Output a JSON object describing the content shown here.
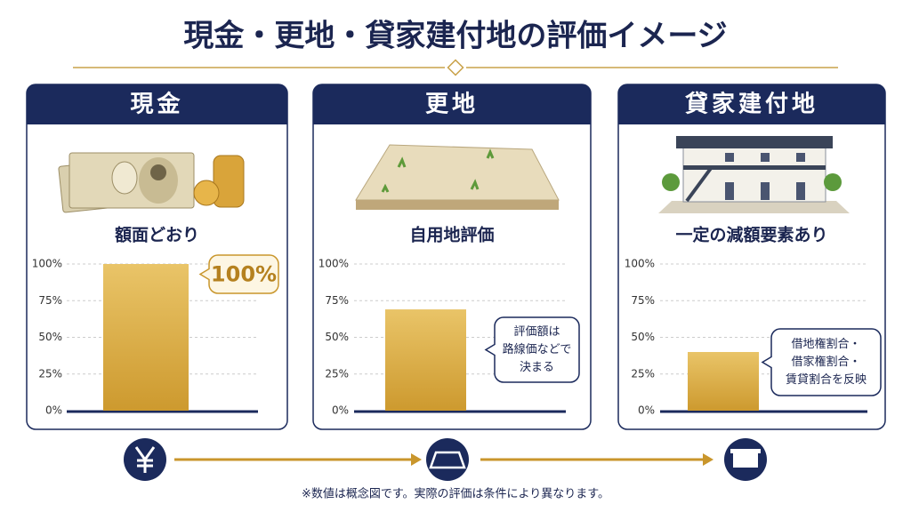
{
  "title": "現金・更地・貸家建付地の評価イメージ",
  "footnote": "※数値は概念図です。実際の評価は条件により異なります。",
  "chart_data": [
    {
      "type": "bar",
      "title": "現金",
      "subtitle": "額面どおり",
      "categories": [
        null
      ],
      "values": [
        100
      ],
      "value_labels": [
        "100%"
      ],
      "color": "#d6a535",
      "ylim": [
        0,
        100
      ],
      "yticks": [
        {
          "value": 0,
          "label": "0%"
        },
        {
          "value": 25,
          "label": "25%"
        },
        {
          "value": 50,
          "label": "50%"
        },
        {
          "value": 75,
          "label": "75%"
        },
        {
          "value": 100,
          "label": "100%"
        }
      ],
      "grid": true
    },
    {
      "type": "bar",
      "title": "更地",
      "subtitle": "自用地評価",
      "categories": [
        null
      ],
      "values": [
        69
      ],
      "color": "#d6a535",
      "annotation": [
        "評価額は",
        "路線価などで",
        "決まる"
      ],
      "ylim": [
        0,
        100
      ],
      "yticks": [
        {
          "value": 0,
          "label": "0%"
        },
        {
          "value": 25,
          "label": "25%"
        },
        {
          "value": 50,
          "label": "50%"
        },
        {
          "value": 75,
          "label": "75%"
        },
        {
          "value": 100,
          "label": "100%"
        }
      ],
      "grid": true
    },
    {
      "type": "bar",
      "title": "貸家建付地",
      "subtitle": "一定の減額要素あり",
      "categories": [
        null
      ],
      "values": [
        40
      ],
      "color": "#d6a535",
      "annotation": [
        "借地権割合・",
        "借家権割合・",
        "賃貸割合を反映"
      ],
      "ylim": [
        0,
        100
      ],
      "yticks": [
        {
          "value": 0,
          "label": "0%"
        },
        {
          "value": 25,
          "label": "25%"
        },
        {
          "value": 50,
          "label": "50%"
        },
        {
          "value": 75,
          "label": "75%"
        },
        {
          "value": 100,
          "label": "100%"
        }
      ],
      "grid": true
    }
  ]
}
